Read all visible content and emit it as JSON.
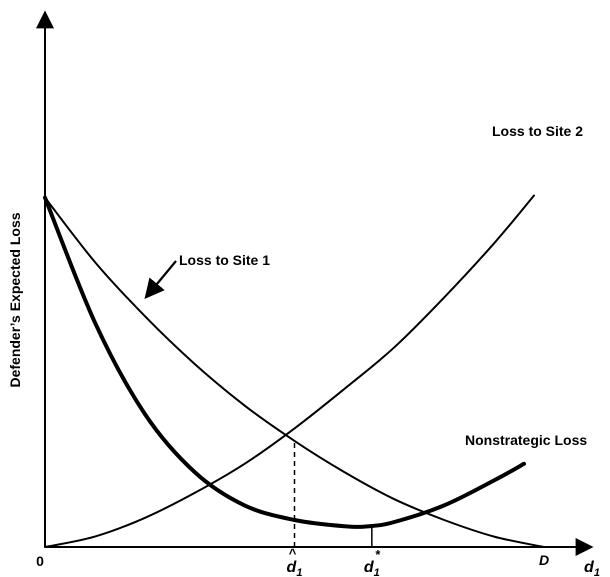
{
  "chart_data": {
    "type": "line",
    "ylabel": "Defender’s Expected Loss",
    "xlabel": "d",
    "xlabel_sub": "1",
    "origin_label": "0",
    "x_end_label": "D",
    "x_range": [
      0,
      1
    ],
    "y_range": [
      0,
      1
    ],
    "series": [
      {
        "name": "Loss to Site 1",
        "style": "thin",
        "x": [
          0,
          0.1,
          0.2,
          0.3,
          0.4,
          0.5,
          0.6,
          0.7,
          0.8,
          0.9,
          1.0
        ],
        "y": [
          0.84,
          0.685,
          0.555,
          0.44,
          0.34,
          0.255,
          0.18,
          0.115,
          0.065,
          0.025,
          0.0
        ]
      },
      {
        "name": "Loss to Site 2",
        "style": "thin",
        "x": [
          0,
          0.1,
          0.2,
          0.3,
          0.4,
          0.5,
          0.6,
          0.7,
          0.8,
          0.9,
          0.98
        ],
        "y": [
          0.0,
          0.025,
          0.07,
          0.13,
          0.2,
          0.285,
          0.38,
          0.48,
          0.6,
          0.73,
          0.845
        ]
      },
      {
        "name": "Nonstrategic Loss",
        "style": "thick",
        "x": [
          0,
          0.1,
          0.2,
          0.3,
          0.4,
          0.5,
          0.6,
          0.65,
          0.7,
          0.8,
          0.9,
          0.96
        ],
        "y": [
          0.84,
          0.54,
          0.32,
          0.18,
          0.1,
          0.065,
          0.05,
          0.05,
          0.06,
          0.1,
          0.16,
          0.2
        ]
      }
    ],
    "markers": [
      {
        "label": "d",
        "sub": "1",
        "accent": "^",
        "x": 0.5,
        "style": "dashed",
        "y_top": 0.255
      },
      {
        "label": "d",
        "sub": "1",
        "accent": "*",
        "x": 0.655,
        "style": "solid",
        "y_top": 0.05
      }
    ],
    "colors": {
      "line": "#000000",
      "background": "#ffffff"
    }
  }
}
